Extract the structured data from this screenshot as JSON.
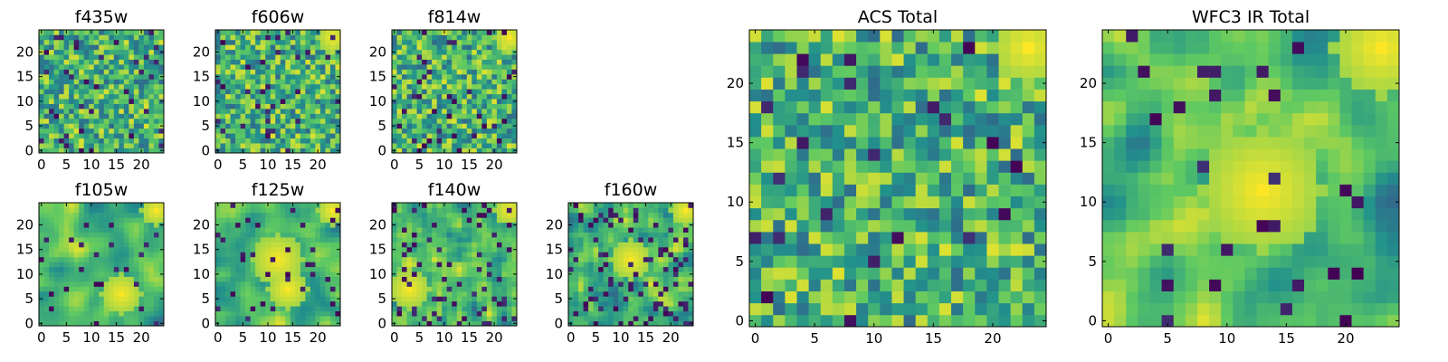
{
  "figure": {
    "cmap": [
      "#440154",
      "#3b528b",
      "#21918c",
      "#5ec962",
      "#fde725"
    ]
  },
  "chart_data": [
    {
      "type": "heatmap",
      "title": "f435w",
      "grid": [
        25,
        25
      ],
      "xlim": [
        -0.5,
        24.5
      ],
      "ylim": [
        -0.5,
        24.5
      ],
      "xticks": [
        0,
        5,
        10,
        15,
        20
      ],
      "yticks": [
        0,
        5,
        10,
        15,
        20
      ],
      "seed": 11,
      "smooth": 0,
      "dark_fraction": 0.05,
      "hotspots": []
    },
    {
      "type": "heatmap",
      "title": "f606w",
      "grid": [
        25,
        25
      ],
      "xlim": [
        -0.5,
        24.5
      ],
      "ylim": [
        -0.5,
        24.5
      ],
      "xticks": [
        0,
        5,
        10,
        15,
        20
      ],
      "yticks": [
        0,
        5,
        10,
        15,
        20
      ],
      "seed": 23,
      "smooth": 0,
      "dark_fraction": 0.05,
      "hotspots": [
        {
          "x": 23,
          "y": 23,
          "r": 2
        }
      ]
    },
    {
      "type": "heatmap",
      "title": "f814w",
      "grid": [
        25,
        25
      ],
      "xlim": [
        -0.5,
        24.5
      ],
      "ylim": [
        -0.5,
        24.5
      ],
      "xticks": [
        0,
        5,
        10,
        15,
        20
      ],
      "yticks": [
        0,
        5,
        10,
        15,
        20
      ],
      "seed": 37,
      "smooth": 0,
      "dark_fraction": 0.06,
      "hotspots": [
        {
          "x": 23,
          "y": 23,
          "r": 2
        }
      ]
    },
    {
      "type": "heatmap",
      "title": "f105w",
      "grid": [
        25,
        25
      ],
      "xlim": [
        -0.5,
        24.5
      ],
      "ylim": [
        -0.5,
        24.5
      ],
      "xticks": [
        0,
        5,
        10,
        15,
        20
      ],
      "yticks": [
        0,
        5,
        10,
        15,
        20
      ],
      "seed": 41,
      "smooth": 2,
      "dark_fraction": 0.06,
      "hotspots": [
        {
          "x": 23,
          "y": 23,
          "r": 2
        },
        {
          "x": 16,
          "y": 6,
          "r": 3
        }
      ]
    },
    {
      "type": "heatmap",
      "title": "f125w",
      "grid": [
        25,
        25
      ],
      "xlim": [
        -0.5,
        24.5
      ],
      "ylim": [
        -0.5,
        24.5
      ],
      "xticks": [
        0,
        5,
        10,
        15,
        20
      ],
      "yticks": [
        0,
        5,
        10,
        15,
        20
      ],
      "seed": 53,
      "smooth": 2,
      "dark_fraction": 0.05,
      "hotspots": [
        {
          "x": 23,
          "y": 23,
          "r": 2
        },
        {
          "x": 12,
          "y": 13,
          "r": 4
        },
        {
          "x": 14,
          "y": 7,
          "r": 3
        }
      ]
    },
    {
      "type": "heatmap",
      "title": "f140w",
      "grid": [
        25,
        25
      ],
      "xlim": [
        -0.5,
        24.5
      ],
      "ylim": [
        -0.5,
        24.5
      ],
      "xticks": [
        0,
        5,
        10,
        15,
        20
      ],
      "yticks": [
        0,
        5,
        10,
        15,
        20
      ],
      "seed": 67,
      "smooth": 1,
      "dark_fraction": 0.12,
      "hotspots": [
        {
          "x": 23,
          "y": 23,
          "r": 2
        },
        {
          "x": 3,
          "y": 7,
          "r": 3
        }
      ]
    },
    {
      "type": "heatmap",
      "title": "f160w",
      "grid": [
        25,
        25
      ],
      "xlim": [
        -0.5,
        24.5
      ],
      "ylim": [
        -0.5,
        24.5
      ],
      "xticks": [
        0,
        5,
        10,
        15,
        20
      ],
      "yticks": [
        0,
        5,
        10,
        15,
        20
      ],
      "seed": 79,
      "smooth": 1,
      "dark_fraction": 0.12,
      "hotspots": [
        {
          "x": 23,
          "y": 23,
          "r": 2
        },
        {
          "x": 12,
          "y": 13,
          "r": 3
        }
      ]
    },
    {
      "type": "heatmap",
      "title": "ACS Total",
      "grid": [
        25,
        25
      ],
      "xlim": [
        -0.5,
        24.5
      ],
      "ylim": [
        -0.5,
        24.5
      ],
      "xticks": [
        0,
        5,
        10,
        15,
        20
      ],
      "yticks": [
        0,
        5,
        10,
        15,
        20
      ],
      "seed": 97,
      "smooth": 0,
      "dark_fraction": 0.03,
      "hotspots": [
        {
          "x": 23,
          "y": 23,
          "r": 2
        }
      ]
    },
    {
      "type": "heatmap",
      "title": "WFC3 IR Total",
      "grid": [
        25,
        25
      ],
      "xlim": [
        -0.5,
        24.5
      ],
      "ylim": [
        -0.5,
        24.5
      ],
      "xticks": [
        0,
        5,
        10,
        15,
        20
      ],
      "yticks": [
        0,
        5,
        10,
        15,
        20
      ],
      "seed": 113,
      "smooth": 2,
      "dark_fraction": 0.04,
      "hotspots": [
        {
          "x": 23,
          "y": 23,
          "r": 3
        },
        {
          "x": 13,
          "y": 11,
          "r": 4
        }
      ]
    }
  ]
}
